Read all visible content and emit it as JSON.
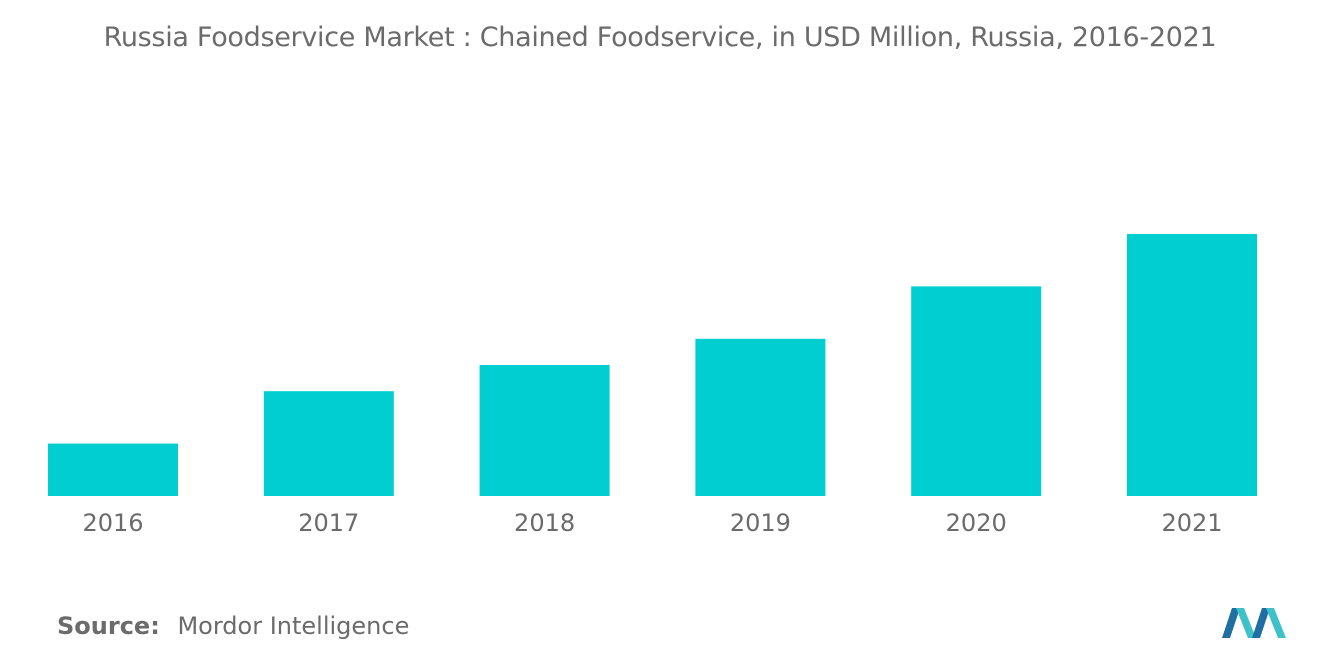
{
  "title": "Russia Foodservice Market : Chained Foodservice, in USD Million, Russia, 2016-2021",
  "source": {
    "label": "Source:",
    "text": "Mordor Intelligence"
  },
  "colors": {
    "bar": "#00CED1",
    "text": "#6b6b6b",
    "logo_dark": "#1f6fa3",
    "logo_light": "#3fc1c9"
  },
  "logo": {
    "icon": "mordor-intelligence-logo"
  },
  "chart_data": {
    "type": "bar",
    "categories": [
      "2016",
      "2017",
      "2018",
      "2019",
      "2020",
      "2021"
    ],
    "values": [
      20,
      40,
      50,
      60,
      80,
      100
    ],
    "ylim": [
      0,
      100
    ],
    "xlabel": "",
    "ylabel": "",
    "grid": false,
    "legend": "none"
  }
}
